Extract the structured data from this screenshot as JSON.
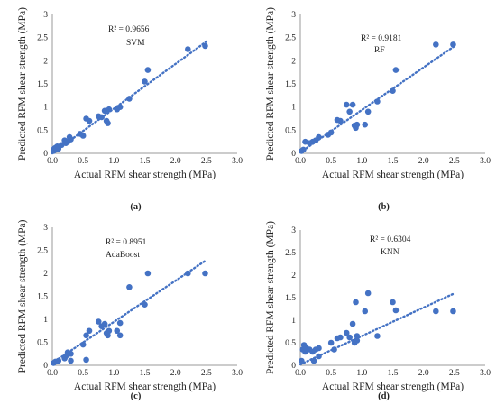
{
  "chart_data": [
    {
      "type": "scatter",
      "panel_label": "(a)",
      "xlabel": "Actual RFM shear strength (MPa)",
      "ylabel": "Predicted RFM shear strength (MPa)",
      "xlim": [
        0,
        3.0
      ],
      "ylim": [
        0,
        3.0
      ],
      "xticks": [
        "0.0",
        "0.5",
        "1.0",
        "1.5",
        "2.0",
        "2.5",
        "3.0"
      ],
      "yticks": [
        "0",
        "0.5",
        "1",
        "1.5",
        "2",
        "2.5",
        "3"
      ],
      "r2_label": "R² = 0.9656",
      "model_label": "SVM",
      "trendline": {
        "style": "dotted",
        "slope": 0.966,
        "intercept": 0.0,
        "x_range": [
          0,
          2.5
        ]
      },
      "color": "#4472c4",
      "points": [
        [
          0.02,
          0.05
        ],
        [
          0.03,
          0.1
        ],
        [
          0.05,
          0.12
        ],
        [
          0.06,
          0.08
        ],
        [
          0.08,
          0.15
        ],
        [
          0.1,
          0.1
        ],
        [
          0.15,
          0.18
        ],
        [
          0.2,
          0.28
        ],
        [
          0.22,
          0.22
        ],
        [
          0.25,
          0.25
        ],
        [
          0.28,
          0.35
        ],
        [
          0.3,
          0.3
        ],
        [
          0.45,
          0.42
        ],
        [
          0.5,
          0.38
        ],
        [
          0.55,
          0.75
        ],
        [
          0.6,
          0.7
        ],
        [
          0.75,
          0.8
        ],
        [
          0.8,
          0.78
        ],
        [
          0.85,
          0.92
        ],
        [
          0.88,
          0.7
        ],
        [
          0.9,
          0.65
        ],
        [
          0.92,
          0.95
        ],
        [
          1.05,
          0.95
        ],
        [
          1.1,
          1.0
        ],
        [
          1.25,
          1.18
        ],
        [
          1.5,
          1.55
        ],
        [
          1.55,
          1.8
        ],
        [
          2.2,
          2.25
        ],
        [
          2.48,
          2.32
        ]
      ]
    },
    {
      "type": "scatter",
      "panel_label": "(b)",
      "xlabel": "Actual RFM shear strength (MPa)",
      "ylabel": "Predicted RFM shear strength (MPa)",
      "xlim": [
        0,
        3.0
      ],
      "ylim": [
        0,
        3.0
      ],
      "xticks": [
        "0.0",
        "0.5",
        "1.0",
        "1.5",
        "2.0",
        "2.5",
        "3.0"
      ],
      "yticks": [
        "0",
        "0.5",
        "1",
        "1.5",
        "2",
        "2.5",
        "3"
      ],
      "r2_label": "R² = 0.9181",
      "model_label": "RF",
      "trendline": {
        "style": "dotted",
        "slope": 0.918,
        "intercept": 0.02,
        "x_range": [
          0,
          2.5
        ]
      },
      "color": "#4472c4",
      "points": [
        [
          0.02,
          0.05
        ],
        [
          0.05,
          0.08
        ],
        [
          0.08,
          0.25
        ],
        [
          0.15,
          0.22
        ],
        [
          0.2,
          0.25
        ],
        [
          0.25,
          0.28
        ],
        [
          0.3,
          0.35
        ],
        [
          0.45,
          0.4
        ],
        [
          0.5,
          0.45
        ],
        [
          0.6,
          0.72
        ],
        [
          0.65,
          0.7
        ],
        [
          0.75,
          1.05
        ],
        [
          0.8,
          0.9
        ],
        [
          0.85,
          1.05
        ],
        [
          0.88,
          0.6
        ],
        [
          0.9,
          0.55
        ],
        [
          0.92,
          0.62
        ],
        [
          1.05,
          0.62
        ],
        [
          1.1,
          0.9
        ],
        [
          1.25,
          1.12
        ],
        [
          1.5,
          1.35
        ],
        [
          1.55,
          1.8
        ],
        [
          2.2,
          2.35
        ],
        [
          2.48,
          2.35
        ]
      ]
    },
    {
      "type": "scatter",
      "panel_label": "(c)",
      "xlabel": "Actual RFM shear strength (MPa)",
      "ylabel": "Predicted RFM shear strength (MPa)",
      "xlim": [
        0,
        3.0
      ],
      "ylim": [
        0,
        3.0
      ],
      "xticks": [
        "0.0",
        "0.5",
        "1.0",
        "1.5",
        "2.0",
        "2.5",
        "3.0"
      ],
      "yticks": [
        "0",
        "0.5",
        "1",
        "1.5",
        "2",
        "2.5",
        "3"
      ],
      "r2_label": "R² = 0.8951",
      "model_label": "AdaBoost",
      "trendline": {
        "style": "dotted",
        "slope": 0.895,
        "intercept": 0.05,
        "x_range": [
          0,
          2.5
        ]
      },
      "color": "#4472c4",
      "points": [
        [
          0.02,
          0.05
        ],
        [
          0.05,
          0.08
        ],
        [
          0.1,
          0.1
        ],
        [
          0.2,
          0.15
        ],
        [
          0.22,
          0.2
        ],
        [
          0.25,
          0.28
        ],
        [
          0.3,
          0.25
        ],
        [
          0.3,
          0.1
        ],
        [
          0.5,
          0.45
        ],
        [
          0.55,
          0.65
        ],
        [
          0.6,
          0.75
        ],
        [
          0.55,
          0.12
        ],
        [
          0.75,
          0.95
        ],
        [
          0.8,
          0.85
        ],
        [
          0.85,
          0.9
        ],
        [
          0.88,
          0.7
        ],
        [
          0.9,
          0.65
        ],
        [
          0.92,
          0.75
        ],
        [
          1.05,
          0.75
        ],
        [
          1.1,
          0.65
        ],
        [
          1.1,
          0.92
        ],
        [
          1.25,
          1.7
        ],
        [
          1.5,
          1.32
        ],
        [
          1.55,
          2.0
        ],
        [
          2.2,
          2.0
        ],
        [
          2.48,
          2.0
        ]
      ]
    },
    {
      "type": "scatter",
      "panel_label": "(d)",
      "xlabel": "Actual RFM shear strength (MPa)",
      "ylabel": "Predicted RFM shear strength (MPa)",
      "xlim": [
        0,
        3.0
      ],
      "ylim": [
        0,
        3.0
      ],
      "xticks": [
        "0.0",
        "0.5",
        "1.0",
        "1.5",
        "2.0",
        "2.5",
        "3.0"
      ],
      "yticks": [
        "0",
        "0.5",
        "1",
        "1.5",
        "2",
        "2.5",
        "3"
      ],
      "r2_label": "R² = 0.6304",
      "model_label": "KNN",
      "trendline": {
        "style": "dotted",
        "slope": 0.63,
        "intercept": 0.02,
        "x_range": [
          0,
          2.5
        ]
      },
      "color": "#4472c4",
      "points": [
        [
          0.02,
          0.1
        ],
        [
          0.04,
          0.35
        ],
        [
          0.06,
          0.45
        ],
        [
          0.08,
          0.3
        ],
        [
          0.1,
          0.38
        ],
        [
          0.15,
          0.35
        ],
        [
          0.2,
          0.3
        ],
        [
          0.22,
          0.1
        ],
        [
          0.25,
          0.35
        ],
        [
          0.3,
          0.2
        ],
        [
          0.3,
          0.38
        ],
        [
          0.5,
          0.5
        ],
        [
          0.55,
          0.35
        ],
        [
          0.6,
          0.6
        ],
        [
          0.65,
          0.62
        ],
        [
          0.75,
          0.72
        ],
        [
          0.8,
          0.62
        ],
        [
          0.85,
          0.92
        ],
        [
          0.88,
          0.5
        ],
        [
          0.9,
          1.4
        ],
        [
          0.92,
          0.65
        ],
        [
          0.92,
          0.55
        ],
        [
          1.05,
          1.2
        ],
        [
          1.1,
          1.6
        ],
        [
          1.25,
          0.65
        ],
        [
          1.5,
          1.4
        ],
        [
          1.55,
          1.22
        ],
        [
          2.2,
          1.2
        ],
        [
          2.48,
          1.2
        ]
      ]
    }
  ]
}
